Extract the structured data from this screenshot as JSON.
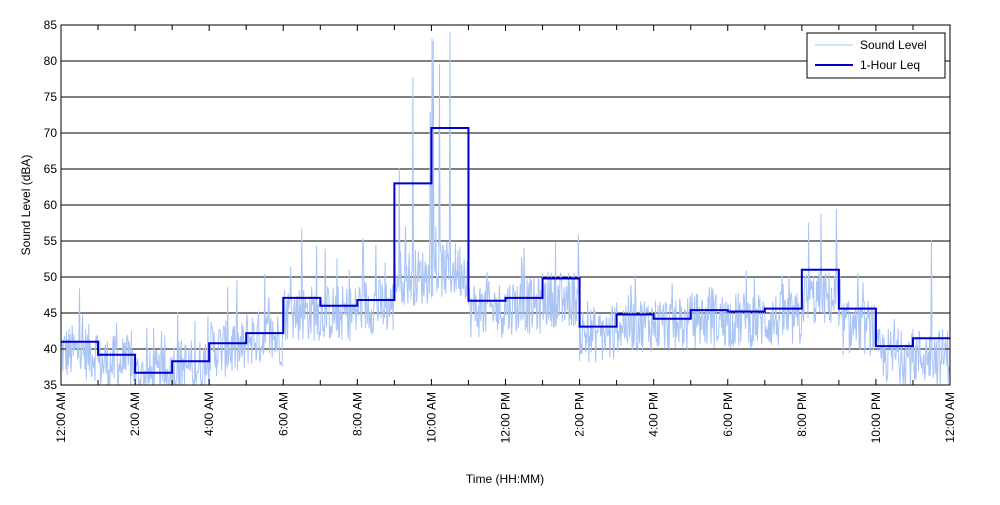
{
  "chart_data": {
    "type": "line",
    "xlabel": "Time (HH:MM)",
    "ylabel": "Sound Level (dBA)",
    "xlim": [
      0,
      24
    ],
    "ylim": [
      35,
      85
    ],
    "y_ticks": [
      35,
      40,
      45,
      50,
      55,
      60,
      65,
      70,
      75,
      80,
      85
    ],
    "x_ticks": [
      {
        "hour": 0,
        "label": "12:00 AM"
      },
      {
        "hour": 2,
        "label": "2:00 AM"
      },
      {
        "hour": 4,
        "label": "4:00 AM"
      },
      {
        "hour": 6,
        "label": "6:00 AM"
      },
      {
        "hour": 8,
        "label": "8:00 AM"
      },
      {
        "hour": 10,
        "label": "10:00 AM"
      },
      {
        "hour": 12,
        "label": "12:00 PM"
      },
      {
        "hour": 14,
        "label": "2:00 PM"
      },
      {
        "hour": 16,
        "label": "4:00 PM"
      },
      {
        "hour": 18,
        "label": "6:00 PM"
      },
      {
        "hour": 20,
        "label": "8:00 PM"
      },
      {
        "hour": 22,
        "label": "10:00 PM"
      },
      {
        "hour": 24,
        "label": "12:00 AM"
      }
    ],
    "minor_x_tick_hours": [
      1,
      3,
      5,
      7,
      9,
      11,
      13,
      15,
      17,
      19,
      21,
      23
    ],
    "grid": "horizontal",
    "legend_position": "top-right",
    "series": [
      {
        "name": "Sound Level",
        "color": "#a9c4f5",
        "style": "thin-line",
        "hourly_baseline": [
          39.5,
          38,
          36,
          37.5,
          40,
          41.5,
          45,
          45,
          46,
          50,
          51,
          45.5,
          46,
          47,
          42,
          43.5,
          43.5,
          44,
          44,
          44,
          47,
          43,
          39,
          39
        ],
        "hourly_peak": [
          49,
          45,
          43,
          46,
          50,
          52,
          57,
          55,
          56,
          79,
          85,
          52,
          55,
          56,
          50,
          52,
          50,
          50,
          52,
          51,
          60,
          53,
          45,
          57
        ]
      },
      {
        "name": "1-Hour Leq",
        "color": "#0000cc",
        "style": "step",
        "values": [
          41,
          39.2,
          36.7,
          38.3,
          40.8,
          42.2,
          47.1,
          46,
          46.8,
          63,
          70.7,
          46.7,
          47.1,
          49.8,
          43.1,
          44.8,
          44.2,
          45.4,
          45.2,
          45.6,
          51,
          45.6,
          40.4,
          41.5
        ]
      }
    ]
  }
}
